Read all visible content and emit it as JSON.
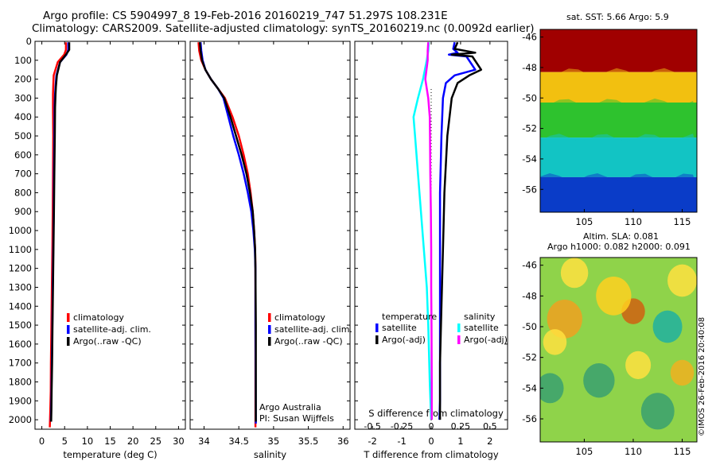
{
  "header": {
    "line1": "Argo profile: CS 5904997_8 19-Feb-2016 20160219_747 51.297S 108.231E",
    "line2": "Climatology: CARS2009. Satellite-adjusted climatology: synTS_20160219.nc (0.0092d earlier)"
  },
  "sst_title": "sat. SST: 5.66 Argo: 5.9",
  "sla_title1": "Altim. SLA: 0.081",
  "sla_title2": "Argo h1000: 0.082 h2000: 0.091",
  "credit": "©IMOS 26-Feb-2016 20:40:08",
  "colors": {
    "climatology": "#ff0000",
    "satellite": "#0000ff",
    "argo": "#000000",
    "sal_satellite": "#00ffff",
    "sal_argo": "#ff00ff"
  },
  "chart_data": [
    {
      "type": "line",
      "id": "temperature",
      "xlabel": "temperature (deg C)",
      "ylabel": "",
      "xlim": [
        -1.5,
        31.5
      ],
      "ylim": [
        2050,
        0
      ],
      "xticks": [
        0,
        5,
        10,
        15,
        20,
        25,
        30
      ],
      "yticks": [
        0,
        100,
        200,
        300,
        400,
        500,
        600,
        700,
        800,
        900,
        1000,
        1100,
        1200,
        1300,
        1400,
        1500,
        1600,
        1700,
        1800,
        1900,
        2000
      ],
      "legend": [
        "climatology",
        "satellite-adj. clim.",
        "Argo(..raw -QC)"
      ],
      "series": [
        {
          "name": "climatology",
          "color": "climatology",
          "x": [
            5.3,
            5.3,
            4.9,
            3.5,
            2.6,
            2.5,
            2.45,
            2.45,
            2.5,
            2.45,
            2.4,
            2.3,
            2.2,
            2.1,
            2.0,
            1.95,
            1.85,
            1.75
          ],
          "y": [
            5,
            45,
            70,
            110,
            180,
            240,
            280,
            350,
            500,
            700,
            900,
            1100,
            1300,
            1500,
            1700,
            1850,
            1950,
            2040
          ]
        },
        {
          "name": "satellite-adj. clim.",
          "color": "satellite",
          "x": [
            5.8,
            5.8,
            5.4,
            4.0,
            3.2,
            3.0,
            2.9,
            2.8,
            2.75,
            2.65,
            2.6,
            2.5,
            2.4,
            2.3,
            2.2,
            2.1,
            2.05,
            2.0
          ],
          "y": [
            5,
            45,
            70,
            110,
            180,
            240,
            280,
            350,
            500,
            700,
            900,
            1100,
            1300,
            1500,
            1700,
            1850,
            1950,
            2010
          ]
        },
        {
          "name": "Argo(..raw -QC)",
          "color": "argo",
          "x": [
            6.0,
            6.0,
            5.3,
            4.0,
            3.3,
            3.1,
            3.0,
            2.9,
            2.85,
            2.75,
            2.65,
            2.55,
            2.45,
            2.35,
            2.25,
            2.15,
            2.1,
            2.05
          ],
          "y": [
            5,
            45,
            70,
            110,
            180,
            240,
            280,
            350,
            500,
            700,
            900,
            1100,
            1300,
            1500,
            1700,
            1850,
            1950,
            2010
          ]
        }
      ]
    },
    {
      "type": "line",
      "id": "salinity",
      "xlabel": "salinity",
      "ylabel": "",
      "xlim": [
        33.8,
        36.1
      ],
      "ylim": [
        2050,
        0
      ],
      "xticks": [
        34,
        34.5,
        35,
        35.5,
        36
      ],
      "xticklabels": [
        "34",
        "34.5",
        "35",
        "35.5",
        "36"
      ],
      "legend": [
        "climatology",
        "satellite-adj. clim.",
        "Argo(..raw -QC)"
      ],
      "annotation": [
        "Argo Australia",
        "PI: Susan Wijffels"
      ],
      "series": [
        {
          "name": "climatology",
          "color": "climatology",
          "x": [
            33.92,
            33.93,
            33.96,
            34.02,
            34.1,
            34.2,
            34.3,
            34.41,
            34.5,
            34.57,
            34.63,
            34.67,
            34.7,
            34.72,
            34.735,
            34.74,
            34.74,
            34.74
          ],
          "y": [
            5,
            50,
            100,
            150,
            200,
            250,
            300,
            400,
            500,
            600,
            700,
            800,
            900,
            1000,
            1100,
            1200,
            1500,
            2040
          ]
        },
        {
          "name": "satellite-adj. clim.",
          "color": "satellite",
          "x": [
            33.95,
            33.96,
            33.98,
            34.02,
            34.1,
            34.2,
            34.28,
            34.35,
            34.42,
            34.5,
            34.57,
            34.63,
            34.68,
            34.71,
            34.73,
            34.74,
            34.74,
            34.745
          ],
          "y": [
            5,
            50,
            100,
            150,
            200,
            250,
            300,
            400,
            500,
            600,
            700,
            800,
            900,
            1000,
            1100,
            1200,
            1500,
            2020
          ]
        },
        {
          "name": "Argo(..raw -QC)",
          "color": "argo",
          "x": [
            33.94,
            33.95,
            33.97,
            34.02,
            34.1,
            34.2,
            34.29,
            34.38,
            34.46,
            34.54,
            34.61,
            34.66,
            34.7,
            34.72,
            34.735,
            34.74,
            34.745,
            34.745
          ],
          "y": [
            5,
            50,
            100,
            150,
            200,
            250,
            300,
            400,
            500,
            600,
            700,
            800,
            900,
            1000,
            1100,
            1200,
            1500,
            2010
          ]
        }
      ]
    },
    {
      "type": "line",
      "id": "difference",
      "xlabel": "T difference from climatology",
      "xlabel2": "S difference from climatology",
      "ylabel": "",
      "xlim": [
        -2.6,
        2.6
      ],
      "ylim": [
        2050,
        0
      ],
      "xticks": [
        -2,
        -1,
        0,
        1,
        2
      ],
      "xticks2": [
        -0.5,
        -0.25,
        0,
        0.25,
        0.5
      ],
      "legend_groups": [
        "temperature",
        "salinity"
      ],
      "legend": [
        "satellite",
        "Argo(-adj)",
        "satellite",
        "Argo(-adj)"
      ],
      "series": [
        {
          "name": "satellite",
          "group": "temperature",
          "color": "satellite",
          "x": [
            0.8,
            0.75,
            0.9,
            0.6,
            1.2,
            1.5,
            0.8,
            0.5,
            0.4,
            0.35,
            0.3,
            0.3,
            0.3,
            0.3,
            0.3,
            0.28
          ],
          "y": [
            5,
            40,
            60,
            70,
            80,
            150,
            180,
            220,
            300,
            500,
            800,
            1100,
            1400,
            1700,
            1900,
            2000
          ]
        },
        {
          "name": "Argo(-adj)",
          "group": "temperature",
          "color": "argo",
          "x": [
            0.9,
            0.8,
            1.5,
            0.7,
            1.4,
            1.7,
            1.3,
            0.9,
            0.7,
            0.55,
            0.45,
            0.4,
            0.35,
            0.3,
            0.3,
            0.3
          ],
          "y": [
            5,
            40,
            60,
            70,
            80,
            150,
            180,
            220,
            300,
            500,
            800,
            1100,
            1400,
            1700,
            1900,
            2000
          ]
        },
        {
          "name": "satellite",
          "group": "salinity",
          "color": "sal_satellite",
          "x": [
            -0.08,
            -0.1,
            -0.15,
            -0.28,
            -0.45,
            -0.6,
            -0.55,
            -0.45,
            -0.35,
            -0.25,
            -0.15,
            -0.1,
            -0.05,
            0.0
          ],
          "y": [
            5,
            50,
            100,
            200,
            300,
            400,
            500,
            700,
            900,
            1100,
            1300,
            1500,
            1800,
            2000
          ]
        },
        {
          "name": "Argo(-adj)",
          "group": "salinity",
          "color": "sal_argo",
          "x": [
            -0.1,
            -0.12,
            -0.12,
            -0.2,
            -0.1,
            -0.05,
            -0.04,
            -0.03,
            -0.01,
            0.0,
            0.0,
            0.01,
            0.02,
            0.02
          ],
          "y": [
            5,
            50,
            100,
            200,
            300,
            400,
            500,
            700,
            900,
            1100,
            1300,
            1500,
            1800,
            2000
          ]
        }
      ]
    },
    {
      "type": "heatmap",
      "id": "sst-map",
      "xlim": [
        100.5,
        116.5
      ],
      "ylim": [
        -57.5,
        -45.5
      ],
      "xticks": [
        105,
        110,
        115
      ],
      "yticks": [
        -46,
        -48,
        -50,
        -52,
        -54,
        -56
      ],
      "bands": [
        {
          "y_top": -45.5,
          "y_bottom": -48.3,
          "color": "#a00000"
        },
        {
          "y_top": -48.3,
          "y_bottom": -50.3,
          "color": "#f2c010"
        },
        {
          "y_top": -50.3,
          "y_bottom": -52.6,
          "color": "#2ec22e"
        },
        {
          "y_top": -52.6,
          "y_bottom": -55.2,
          "color": "#12c4c4"
        },
        {
          "y_top": -55.2,
          "y_bottom": -57.5,
          "color": "#0a3cc8"
        }
      ]
    },
    {
      "type": "heatmap",
      "id": "sla-map",
      "xlim": [
        100.5,
        116.5
      ],
      "ylim": [
        -57.5,
        -45.5
      ],
      "xticks": [
        105,
        110,
        115
      ],
      "yticks": [
        -46,
        -48,
        -50,
        -52,
        -54,
        -56
      ],
      "base_color": "#8fd34a",
      "blobs": [
        {
          "x": 103.0,
          "y": -49.5,
          "r": 1.8,
          "color": "#f0a020"
        },
        {
          "x": 110.0,
          "y": -49.0,
          "r": 1.2,
          "color": "#d06010"
        },
        {
          "x": 108.0,
          "y": -48.0,
          "r": 1.8,
          "color": "#ffd020"
        },
        {
          "x": 113.5,
          "y": -50.0,
          "r": 1.5,
          "color": "#20b0a0"
        },
        {
          "x": 106.5,
          "y": -53.5,
          "r": 1.6,
          "color": "#3aa070"
        },
        {
          "x": 101.5,
          "y": -54.0,
          "r": 1.4,
          "color": "#3aa070"
        },
        {
          "x": 112.5,
          "y": -55.5,
          "r": 1.7,
          "color": "#3aa070"
        },
        {
          "x": 115.0,
          "y": -47.0,
          "r": 1.5,
          "color": "#ffe040"
        },
        {
          "x": 104.0,
          "y": -46.5,
          "r": 1.4,
          "color": "#ffe040"
        },
        {
          "x": 110.5,
          "y": -52.5,
          "r": 1.3,
          "color": "#ffe040"
        },
        {
          "x": 102.0,
          "y": -51.0,
          "r": 1.2,
          "color": "#ffe040"
        },
        {
          "x": 115.0,
          "y": -53.0,
          "r": 1.2,
          "color": "#f0b020"
        }
      ]
    }
  ]
}
